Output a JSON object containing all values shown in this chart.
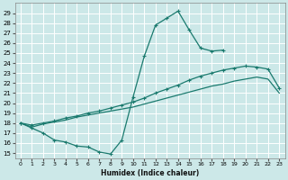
{
  "background_color": "#cce8e8",
  "grid_color": "#ffffff",
  "line_color": "#1a7a6e",
  "xlabel": "Humidex (Indice chaleur)",
  "xlim": [
    -0.5,
    23.5
  ],
  "ylim": [
    14.5,
    30.0
  ],
  "yticks": [
    15,
    16,
    17,
    18,
    19,
    20,
    21,
    22,
    23,
    24,
    25,
    26,
    27,
    28,
    29
  ],
  "xticks": [
    0,
    1,
    2,
    3,
    4,
    5,
    6,
    7,
    8,
    9,
    10,
    11,
    12,
    13,
    14,
    15,
    16,
    17,
    18,
    19,
    20,
    21,
    22,
    23
  ],
  "curve1_x": [
    0,
    1,
    2,
    3,
    4,
    5,
    6,
    7,
    8,
    9,
    10,
    11,
    12,
    13,
    14,
    15,
    16,
    17,
    18
  ],
  "curve1_y": [
    18.0,
    17.5,
    17.0,
    16.3,
    16.1,
    15.7,
    15.6,
    15.1,
    14.9,
    16.3,
    20.6,
    24.7,
    27.8,
    28.5,
    29.2,
    27.3,
    25.5,
    25.2,
    25.3
  ],
  "curve2_x": [
    0,
    1,
    2,
    3,
    4,
    5,
    6,
    7,
    8,
    9,
    10,
    11,
    12,
    13,
    14,
    15,
    16,
    17,
    18,
    19,
    20,
    21,
    22,
    23
  ],
  "curve2_y": [
    18.0,
    17.8,
    18.0,
    18.2,
    18.5,
    18.7,
    19.0,
    19.2,
    19.5,
    19.8,
    20.1,
    20.5,
    21.0,
    21.4,
    21.8,
    22.3,
    22.7,
    23.0,
    23.3,
    23.5,
    23.7,
    23.6,
    23.4,
    21.5
  ],
  "curve3_x": [
    0,
    1,
    2,
    3,
    4,
    5,
    6,
    7,
    8,
    9,
    10,
    11,
    12,
    13,
    14,
    15,
    16,
    17,
    18,
    19,
    20,
    21,
    22,
    23
  ],
  "curve3_y": [
    18.0,
    17.6,
    17.9,
    18.1,
    18.3,
    18.6,
    18.8,
    19.0,
    19.2,
    19.4,
    19.6,
    19.9,
    20.2,
    20.5,
    20.8,
    21.1,
    21.4,
    21.7,
    21.9,
    22.2,
    22.4,
    22.6,
    22.4,
    21.0
  ]
}
